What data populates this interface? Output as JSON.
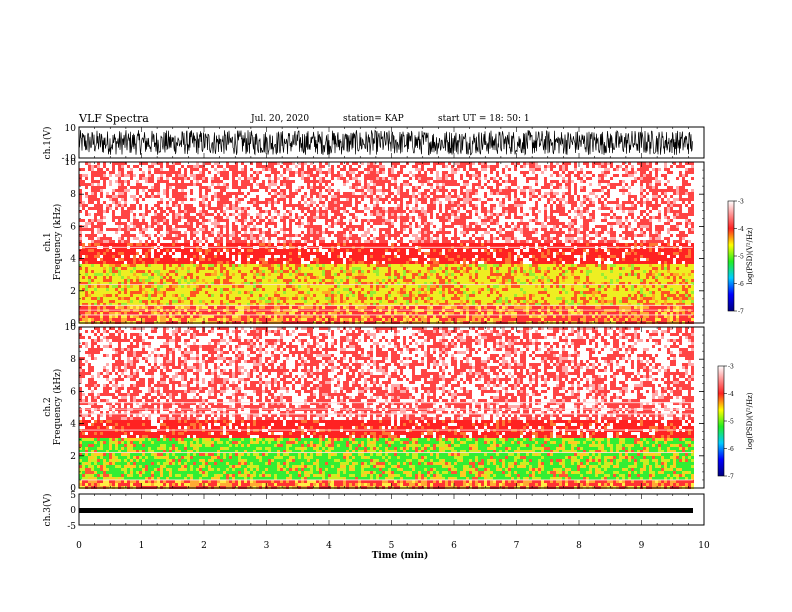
{
  "header": {
    "title": "VLF Spectra",
    "date": "Jul. 20, 2020",
    "station": "station= KAP",
    "start_time": "start UT = 18: 50: 1"
  },
  "colors": {
    "spectrogram_low": "#0000cc",
    "spectrogram_mid_low": "#22ee22",
    "spectrogram_mid": "#eeee00",
    "spectrogram_mid_high": "#ff2222",
    "spectrogram_high": "#ffffff",
    "trace": "#000000"
  },
  "chart_data": [
    {
      "type": "line",
      "ylabel": "ch.1(V)",
      "ylim": [
        -10,
        10
      ],
      "y_ticks": [
        "10",
        "-10"
      ],
      "description_values": {
        "signal_range": [
          -8,
          8
        ]
      }
    },
    {
      "type": "heatmap",
      "ylabel_line1": "ch.1",
      "ylabel_line2": "Frequency (kHz)",
      "ylim": [
        0,
        10
      ],
      "y_ticks": [
        "0",
        "2",
        "4",
        "6",
        "8",
        "10"
      ],
      "band_yellow_khz": [
        1.2,
        3.8
      ],
      "colorbar": {
        "label": "log(PSD)(V²/Hz)",
        "range": [
          -7,
          -3
        ],
        "ticks": [
          "-3",
          "-4",
          "-5",
          "-6",
          "-7"
        ]
      }
    },
    {
      "type": "heatmap",
      "ylabel_line1": "ch.2",
      "ylabel_line2": "Frequency (kHz)",
      "ylim": [
        0,
        10
      ],
      "y_ticks": [
        "0",
        "2",
        "4",
        "6",
        "8",
        "10"
      ],
      "band_green_khz": [
        0.6,
        3.2
      ],
      "colorbar": {
        "label": "log(PSD)(V²/Hz)",
        "range": [
          -7,
          -3
        ],
        "ticks": [
          "-3",
          "-4",
          "-5",
          "-6",
          "-7"
        ]
      }
    },
    {
      "type": "line",
      "ylabel": "ch.3(V)",
      "ylim": [
        -5,
        5
      ],
      "y_ticks": [
        "5",
        "0",
        "-5"
      ]
    }
  ],
  "x_axis": {
    "label": "Time (min)",
    "xlim": [
      0,
      10
    ],
    "ticks": [
      "0",
      "1",
      "2",
      "3",
      "4",
      "5",
      "6",
      "7",
      "8",
      "9",
      "10"
    ],
    "data_end_min": 9.82
  }
}
